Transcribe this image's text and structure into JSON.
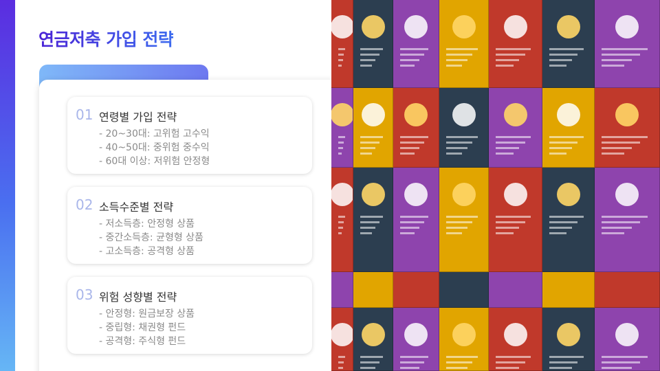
{
  "slide": {
    "title": "연금저축 가입 전략",
    "strategies": [
      {
        "number": "01",
        "title": "연령별 가입 전략",
        "lines": [
          "- 20~30대: 고위험 고수익",
          "- 40~50대: 중위험 중수익",
          "- 60대 이상: 저위험 안정형"
        ]
      },
      {
        "number": "02",
        "title": "소득수준별 전략",
        "lines": [
          "- 저소득층: 안정형 상품",
          "- 중간소득층: 균형형 상품",
          "- 고소득층: 공격형 상품"
        ]
      },
      {
        "number": "03",
        "title": "위험 성향별 전략",
        "lines": [
          "- 안정형: 원금보장 상품",
          "- 중립형: 채권형 펀드",
          "- 공격형: 주식형 펀드"
        ]
      }
    ]
  },
  "colors": {
    "title_gradient_start": "#4b24d6",
    "title_gradient_end": "#3d6bef",
    "number_color": "#a9b6ea"
  }
}
